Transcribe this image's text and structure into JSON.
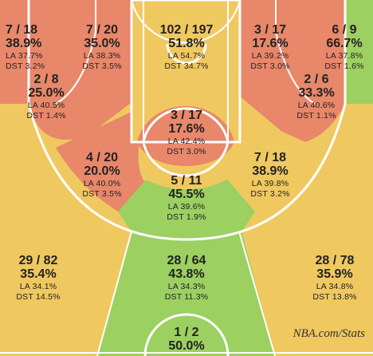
{
  "chart_data": {
    "type": "shot-chart",
    "zones": [
      {
        "id": "left-corner-3",
        "fg": "7 / 18",
        "pct": "38.9%",
        "la": "37.7%",
        "dst": "3.2%",
        "color": "#e8876a"
      },
      {
        "id": "left-baseline-mid",
        "fg": "7 / 20",
        "pct": "35.0%",
        "la": "38.3%",
        "dst": "3.5%",
        "color": "#e8876a"
      },
      {
        "id": "restricted-paint",
        "fg": "102 / 197",
        "pct": "51.8%",
        "la": "54.7%",
        "dst": "34.7%",
        "color": "#f0c860"
      },
      {
        "id": "right-baseline-mid",
        "fg": "3 / 17",
        "pct": "17.6%",
        "la": "39.2%",
        "dst": "3.0%",
        "color": "#e8876a"
      },
      {
        "id": "right-corner-3",
        "fg": "6 / 9",
        "pct": "66.7%",
        "la": "37.8%",
        "dst": "1.6%",
        "color": "#9cd060"
      },
      {
        "id": "left-short-mid",
        "fg": "2 / 8",
        "pct": "25.0%",
        "la": "40.5%",
        "dst": "1.4%",
        "color": "#e8876a"
      },
      {
        "id": "right-short-mid",
        "fg": "2 / 6",
        "pct": "33.3%",
        "la": "40.6%",
        "dst": "1.1%",
        "color": "#e8876a"
      },
      {
        "id": "free-throw-circle",
        "fg": "3 / 17",
        "pct": "17.6%",
        "la": "42.4%",
        "dst": "3.0%",
        "color": "#e8876a"
      },
      {
        "id": "left-elbow-mid",
        "fg": "4 / 20",
        "pct": "20.0%",
        "la": "40.0%",
        "dst": "3.5%",
        "color": "#e8876a"
      },
      {
        "id": "right-elbow-mid",
        "fg": "7 / 18",
        "pct": "38.9%",
        "la": "39.8%",
        "dst": "3.2%",
        "color": "#f0c860"
      },
      {
        "id": "top-key-mid",
        "fg": "5 / 11",
        "pct": "45.5%",
        "la": "39.6%",
        "dst": "1.9%",
        "color": "#9cd060"
      },
      {
        "id": "left-wing-3",
        "fg": "29 / 82",
        "pct": "35.4%",
        "la": "34.1%",
        "dst": "14.5%",
        "color": "#f0c860"
      },
      {
        "id": "top-3",
        "fg": "28 / 64",
        "pct": "43.8%",
        "la": "34.3%",
        "dst": "11.3%",
        "color": "#9cd060"
      },
      {
        "id": "right-wing-3",
        "fg": "28 / 78",
        "pct": "35.9%",
        "la": "34.8%",
        "dst": "13.8%",
        "color": "#f0c860"
      },
      {
        "id": "backcourt",
        "fg": "1 / 2",
        "pct": "50.0%",
        "color": "#f0c860"
      }
    ],
    "labels": {
      "la": "LA",
      "dst": "DST"
    }
  },
  "watermark": "NBA.com/Stats"
}
